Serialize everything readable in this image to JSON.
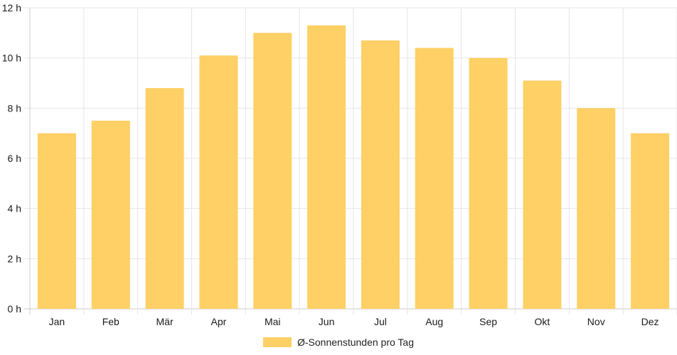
{
  "chart_data": {
    "type": "bar",
    "categories": [
      "Jan",
      "Feb",
      "Mär",
      "Apr",
      "Mai",
      "Jun",
      "Jul",
      "Aug",
      "Sep",
      "Okt",
      "Nov",
      "Dez"
    ],
    "series": [
      {
        "name": "Ø-Sonnenstunden pro Tag",
        "values": [
          7.0,
          7.5,
          8.8,
          10.1,
          11.0,
          11.3,
          10.7,
          10.4,
          10.0,
          9.1,
          8.0,
          7.0
        ]
      }
    ],
    "y_ticks": [
      "0 h",
      "2 h",
      "4 h",
      "6 h",
      "8 h",
      "10 h",
      "12 h"
    ],
    "ylim": [
      0,
      12
    ],
    "grid": true,
    "legend_position": "bottom",
    "colors": {
      "bar": "#fed065",
      "grid": "#e6e6e6",
      "axis": "#cccccc"
    }
  }
}
